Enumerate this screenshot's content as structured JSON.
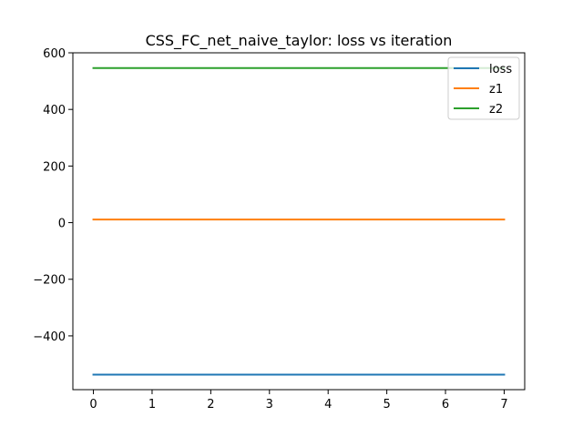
{
  "chart_data": {
    "type": "line",
    "title": "CSS_FC_net_naive_taylor: loss vs iteration",
    "xlabel": "",
    "ylabel": "",
    "xlim": [
      -0.35,
      7.35
    ],
    "ylim": [
      -590,
      600
    ],
    "x_ticks": [
      0,
      1,
      2,
      3,
      4,
      5,
      6,
      7
    ],
    "y_ticks": [
      -400,
      -200,
      0,
      200,
      400,
      600
    ],
    "y_tick_labels": [
      "−400",
      "−200",
      "0",
      "200",
      "400",
      "600"
    ],
    "grid": false,
    "legend": {
      "position": "top-right"
    },
    "x": [
      0,
      1,
      2,
      3,
      4,
      5,
      6,
      7
    ],
    "series": [
      {
        "name": "loss",
        "color": "#1f77b4",
        "values": [
          -537,
          -537,
          -537,
          -537,
          -537,
          -537,
          -537,
          -537
        ]
      },
      {
        "name": "z1",
        "color": "#ff7f0e",
        "values": [
          11,
          11,
          11,
          11,
          11,
          11,
          11,
          11
        ]
      },
      {
        "name": "z2",
        "color": "#2ca02c",
        "values": [
          546,
          546,
          546,
          546,
          546,
          546,
          546,
          546
        ]
      }
    ]
  }
}
